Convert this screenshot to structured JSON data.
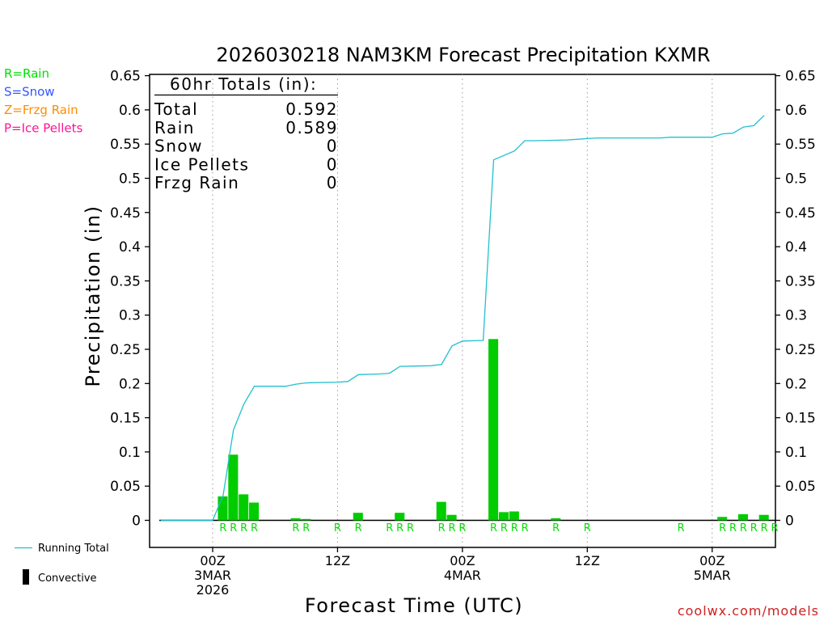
{
  "title": "2026030218 NAM3KM Forecast Precipitation KXMR",
  "watermark": "coolwx.com/models",
  "precip_legend": [
    {
      "label": "R=Rain",
      "color": "#00e000"
    },
    {
      "label": "S=Snow",
      "color": "#3355ff"
    },
    {
      "label": "Z=Frzg Rain",
      "color": "#ff8c00"
    },
    {
      "label": "P=Ice Pellets",
      "color": "#ff1493"
    }
  ],
  "series_legend": {
    "running_total": "Running Total",
    "convective": "Convective"
  },
  "totals_box": {
    "header": "60hr Totals (in):",
    "rows": [
      {
        "label": "Total",
        "value": "0.592"
      },
      {
        "label": "Rain",
        "value": "0.589"
      },
      {
        "label": "Snow",
        "value": "0"
      },
      {
        "label": "Ice Pellets",
        "value": "0"
      },
      {
        "label": "Frzg Rain",
        "value": "0"
      }
    ]
  },
  "colors": {
    "bars": "#00cc00",
    "line": "#20c0d0",
    "rain_marker": "#00e000",
    "axis": "#000000",
    "grid": "#999999"
  },
  "chart_data": {
    "type": "bar",
    "title": "2026030218 NAM3KM Forecast Precipitation KXMR",
    "xlabel": "Forecast Time (UTC)",
    "ylabel": "Precipitation (in)",
    "ylim": [
      0,
      0.65
    ],
    "xlim_hours": [
      -6,
      53
    ],
    "y_ticks": [
      "0",
      "0.05",
      "0.1",
      "0.15",
      "0.2",
      "0.25",
      "0.3",
      "0.35",
      "0.4",
      "0.45",
      "0.5",
      "0.55",
      "0.6",
      "0.65"
    ],
    "x_ticks": [
      {
        "hour": 0,
        "lines": [
          "00Z",
          "3MAR",
          "2026"
        ]
      },
      {
        "hour": 12,
        "lines": [
          "12Z"
        ]
      },
      {
        "hour": 24,
        "lines": [
          "00Z",
          "4MAR"
        ]
      },
      {
        "hour": 36,
        "lines": [
          "12Z"
        ]
      },
      {
        "hour": 48,
        "lines": [
          "00Z",
          "5MAR"
        ]
      }
    ],
    "grid": "vertical dotted at each x tick",
    "hourly_precip": {
      "name": "Convective",
      "hours": [
        1,
        2,
        3,
        4,
        8,
        9,
        14,
        18,
        22,
        23,
        27,
        28,
        29,
        33,
        49,
        51,
        53
      ],
      "values": [
        0.035,
        0.096,
        0.038,
        0.026,
        0.003,
        0.002,
        0.011,
        0.011,
        0.027,
        0.008,
        0.265,
        0.012,
        0.013,
        0.003,
        0.005,
        0.009,
        0.008
      ]
    },
    "running_total": {
      "name": "Running Total",
      "hours": [
        -5,
        0,
        1,
        2,
        3,
        4,
        7,
        8,
        9,
        12,
        13,
        14,
        16,
        17,
        18,
        21,
        22,
        23,
        24,
        26,
        27,
        29,
        30,
        31,
        34,
        35,
        36,
        37,
        42,
        43,
        44,
        47,
        48,
        49,
        50,
        51,
        52,
        53
      ],
      "values": [
        0,
        0,
        0.036,
        0.132,
        0.17,
        0.196,
        0.196,
        0.199,
        0.201,
        0.202,
        0.203,
        0.213,
        0.214,
        0.215,
        0.225,
        0.226,
        0.228,
        0.255,
        0.262,
        0.263,
        0.527,
        0.54,
        0.555,
        0.555,
        0.556,
        0.557,
        0.558,
        0.559,
        0.559,
        0.559,
        0.56,
        0.56,
        0.56,
        0.565,
        0.566,
        0.575,
        0.577,
        0.592
      ]
    },
    "precip_type_markers": {
      "label": "R",
      "hours": [
        1,
        2,
        3,
        4,
        8,
        9,
        12,
        14,
        17,
        18,
        19,
        22,
        23,
        24,
        27,
        28,
        29,
        30,
        33,
        36,
        45,
        49,
        50,
        51,
        52,
        53,
        54
      ]
    }
  }
}
